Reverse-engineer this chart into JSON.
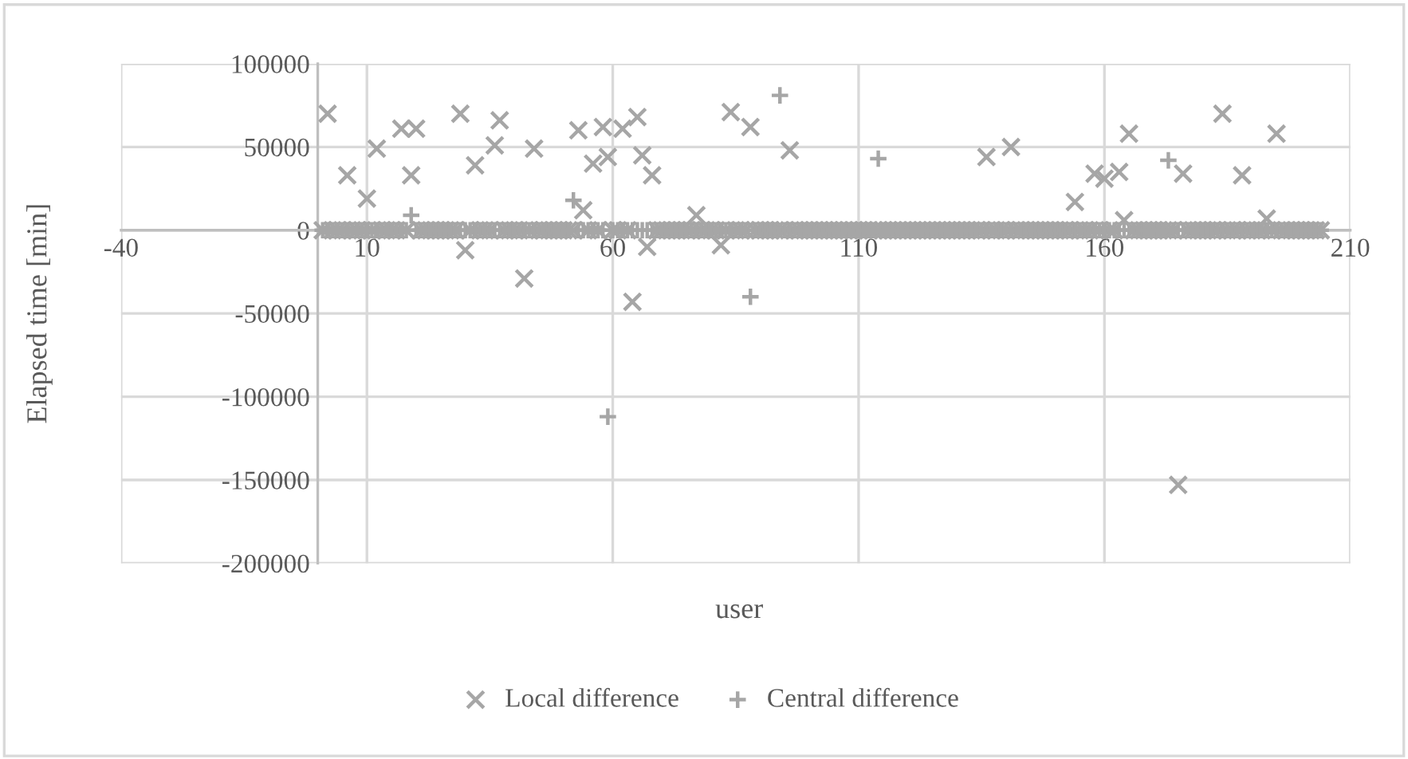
{
  "chart_data": {
    "type": "scatter",
    "xlabel": "user",
    "ylabel": "Elapsed time [min]",
    "xlim": [
      -40,
      210
    ],
    "xticks": [
      -40,
      10,
      60,
      110,
      160,
      210
    ],
    "ylim": [
      -200000,
      100000
    ],
    "yticks": [
      -200000,
      -150000,
      -100000,
      -50000,
      0,
      50000,
      100000
    ],
    "grid": true,
    "legend": "bottom",
    "x": [
      1,
      2,
      3,
      4,
      5,
      6,
      7,
      8,
      9,
      10,
      11,
      12,
      13,
      14,
      15,
      16,
      17,
      18,
      19,
      20,
      21,
      22,
      23,
      24,
      25,
      26,
      27,
      28,
      29,
      30,
      31,
      32,
      33,
      34,
      35,
      36,
      37,
      38,
      39,
      40,
      41,
      42,
      43,
      44,
      45,
      46,
      47,
      48,
      49,
      50,
      51,
      52,
      53,
      54,
      55,
      56,
      57,
      58,
      59,
      60,
      61,
      62,
      63,
      64,
      65,
      66,
      67,
      68,
      69,
      70,
      71,
      72,
      73,
      74,
      75,
      76,
      77,
      78,
      79,
      80,
      81,
      82,
      83,
      84,
      85,
      86,
      87,
      88,
      89,
      90,
      91,
      92,
      93,
      94,
      95,
      96,
      97,
      98,
      99,
      100,
      101,
      102,
      103,
      104,
      105,
      106,
      107,
      108,
      109,
      110,
      111,
      112,
      113,
      114,
      115,
      116,
      117,
      118,
      119,
      120,
      121,
      122,
      123,
      124,
      125,
      126,
      127,
      128,
      129,
      130,
      131,
      132,
      133,
      134,
      135,
      136,
      137,
      138,
      139,
      140,
      141,
      142,
      143,
      144,
      145,
      146,
      147,
      148,
      149,
      150,
      151,
      152,
      153,
      154,
      155,
      156,
      157,
      158,
      159,
      160,
      161,
      162,
      163,
      164,
      165,
      166,
      167,
      168,
      169,
      170,
      171,
      172,
      173,
      174,
      175,
      176,
      177,
      178,
      179,
      180,
      181,
      182,
      183,
      184,
      185,
      186,
      187,
      188,
      189,
      190,
      191,
      192,
      193,
      194,
      195,
      196,
      197,
      198,
      199,
      200,
      201,
      202,
      203,
      204
    ],
    "series": [
      {
        "name": "Local difference",
        "color": "#a6a6a6",
        "marker": "cross",
        "values": [
          0,
          70000,
          0,
          0,
          0,
          33000,
          0,
          0,
          0,
          19000,
          0,
          49000,
          0,
          0,
          0,
          0,
          61000,
          0,
          33000,
          61000,
          0,
          0,
          0,
          0,
          0,
          0,
          0,
          0,
          70000,
          -12000,
          0,
          39000,
          0,
          0,
          0,
          51000,
          66000,
          0,
          0,
          0,
          0,
          -29000,
          0,
          49000,
          0,
          0,
          0,
          0,
          0,
          0,
          0,
          0,
          60000,
          12000,
          0,
          40000,
          0,
          62000,
          44000,
          0,
          0,
          61000,
          0,
          -43000,
          68000,
          45000,
          -10000,
          33000,
          0,
          0,
          0,
          0,
          0,
          0,
          0,
          0,
          9000,
          0,
          0,
          0,
          0,
          -9000,
          0,
          71000,
          0,
          0,
          0,
          62000,
          0,
          0,
          0,
          0,
          0,
          0,
          0,
          48000,
          0,
          0,
          0,
          0,
          0,
          0,
          0,
          0,
          0,
          0,
          0,
          0,
          0,
          0,
          0,
          0,
          0,
          0,
          0,
          0,
          0,
          0,
          0,
          0,
          0,
          0,
          0,
          0,
          0,
          0,
          0,
          0,
          0,
          0,
          0,
          0,
          0,
          0,
          0,
          44000,
          0,
          0,
          0,
          0,
          50000,
          0,
          0,
          0,
          0,
          0,
          0,
          0,
          0,
          0,
          0,
          0,
          0,
          17000,
          0,
          0,
          0,
          34000,
          0,
          31000,
          0,
          0,
          35000,
          6000,
          58000,
          0,
          0,
          0,
          0,
          0,
          0,
          0,
          0,
          0,
          -153000,
          34000,
          0,
          0,
          0,
          0,
          0,
          0,
          0,
          70000,
          0,
          0,
          0,
          33000,
          0,
          0,
          0,
          0,
          7000,
          0,
          58000,
          0,
          0,
          0,
          0,
          0,
          0,
          0,
          0,
          0
        ]
      },
      {
        "name": "Central difference",
        "color": "#a6a6a6",
        "marker": "plus",
        "values": [
          0,
          0,
          0,
          0,
          0,
          0,
          0,
          0,
          0,
          0,
          0,
          0,
          0,
          0,
          0,
          0,
          0,
          0,
          9000,
          0,
          0,
          0,
          0,
          0,
          0,
          0,
          0,
          0,
          0,
          0,
          0,
          0,
          0,
          0,
          0,
          0,
          0,
          0,
          0,
          0,
          0,
          0,
          0,
          0,
          0,
          0,
          0,
          0,
          0,
          0,
          0,
          18000,
          0,
          0,
          0,
          0,
          0,
          0,
          -112000,
          0,
          0,
          0,
          0,
          0,
          0,
          0,
          0,
          0,
          0,
          0,
          0,
          0,
          0,
          0,
          0,
          0,
          0,
          0,
          0,
          0,
          0,
          0,
          0,
          0,
          0,
          0,
          0,
          -40000,
          0,
          0,
          0,
          0,
          0,
          81000,
          0,
          0,
          0,
          0,
          0,
          0,
          0,
          0,
          0,
          0,
          0,
          0,
          0,
          0,
          0,
          0,
          0,
          0,
          0,
          43000,
          0,
          0,
          0,
          0,
          0,
          0,
          0,
          0,
          0,
          0,
          0,
          0,
          0,
          0,
          0,
          0,
          0,
          0,
          0,
          0,
          0,
          0,
          0,
          0,
          0,
          0,
          0,
          0,
          0,
          0,
          0,
          0,
          0,
          0,
          0,
          0,
          0,
          0,
          0,
          0,
          0,
          0,
          0,
          0,
          0,
          0,
          0,
          0,
          0,
          0,
          0,
          0,
          0,
          0,
          0,
          0,
          0,
          0,
          42000,
          0,
          0,
          0,
          0,
          0,
          0,
          0,
          0,
          0,
          0,
          0,
          0,
          0,
          0,
          0,
          0,
          0,
          0,
          0,
          0,
          0,
          0,
          0,
          0,
          0,
          0,
          0,
          0,
          0,
          0,
          0
        ]
      }
    ]
  }
}
